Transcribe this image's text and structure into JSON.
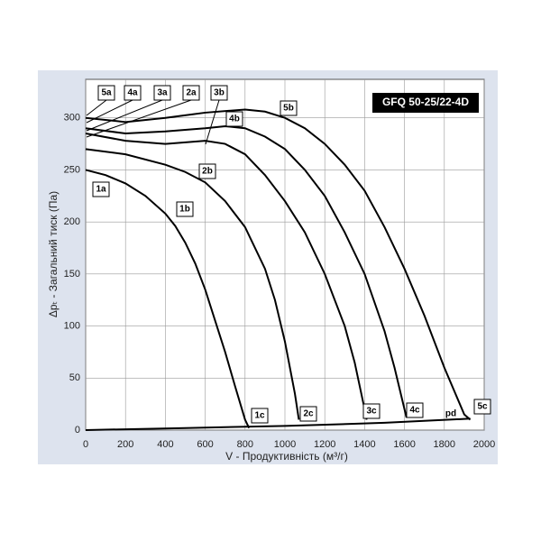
{
  "chart_data": {
    "type": "line",
    "title": "GFQ 50-25/22-4D",
    "x_label": "V - Продуктивність (м³/г)",
    "y_label": "Δpₜ - Загальний тиск (Па)",
    "xlim": [
      0,
      2000
    ],
    "xticks": [
      0,
      200,
      400,
      600,
      800,
      1000,
      1200,
      1400,
      1600,
      1800,
      2000
    ],
    "ylim": [
      0,
      337
    ],
    "yticks": [
      0,
      50,
      100,
      150,
      200,
      250,
      300
    ],
    "grid": true,
    "series": [
      {
        "color": "#000000",
        "x": [
          0,
          100,
          200,
          300,
          400,
          450,
          500,
          550,
          600,
          650,
          700,
          750,
          800,
          820
        ],
        "values": [
          250,
          245,
          237,
          225,
          208,
          196,
          180,
          160,
          135,
          105,
          75,
          42,
          10,
          2
        ]
      },
      {
        "color": "#000000",
        "x": [
          0,
          200,
          400,
          500,
          600,
          700,
          800,
          900,
          950,
          1000,
          1050,
          1070
        ],
        "values": [
          270,
          265,
          255,
          248,
          238,
          220,
          195,
          155,
          125,
          85,
          35,
          10
        ]
      },
      {
        "color": "#000000",
        "x": [
          0,
          200,
          400,
          600,
          700,
          800,
          900,
          1000,
          1100,
          1200,
          1300,
          1350,
          1400,
          1410
        ],
        "values": [
          285,
          278,
          275,
          278,
          275,
          265,
          245,
          220,
          190,
          150,
          100,
          65,
          20,
          10
        ]
      },
      {
        "color": "#000000",
        "x": [
          0,
          200,
          400,
          600,
          700,
          800,
          900,
          1000,
          1100,
          1200,
          1300,
          1400,
          1500,
          1550,
          1600,
          1610
        ],
        "values": [
          290,
          285,
          287,
          290,
          292,
          290,
          282,
          270,
          250,
          225,
          190,
          150,
          95,
          60,
          20,
          12
        ]
      },
      {
        "color": "#000000",
        "x": [
          0,
          200,
          400,
          600,
          800,
          900,
          1000,
          1100,
          1200,
          1300,
          1400,
          1500,
          1600,
          1700,
          1800,
          1900,
          1930
        ],
        "values": [
          300,
          296,
          300,
          305,
          308,
          306,
          300,
          290,
          275,
          255,
          230,
          195,
          155,
          110,
          60,
          15,
          10
        ]
      },
      {
        "color": "#000000",
        "x": [
          0,
          500,
          1000,
          1500,
          1930
        ],
        "values": [
          0,
          2,
          4,
          7,
          11
        ]
      }
    ],
    "annotations": [
      "5a",
      "4a",
      "3a",
      "2a",
      "3b",
      "5b",
      "4b",
      "2b",
      "1a",
      "1b",
      "1c",
      "2c",
      "3c",
      "4c",
      "pd",
      "5c"
    ]
  }
}
